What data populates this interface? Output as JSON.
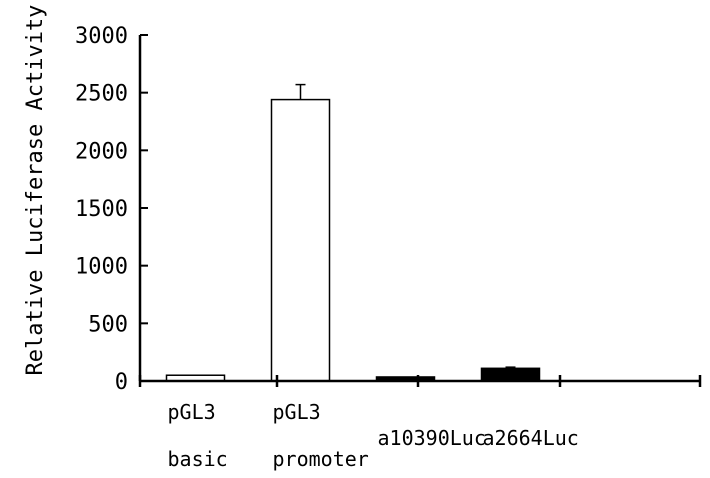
{
  "chart_data": {
    "type": "bar",
    "title": "",
    "xlabel": "",
    "ylabel": "Relative Luciferase Activity",
    "ylim": [
      0,
      3000
    ],
    "yticks": [
      0,
      500,
      1000,
      1500,
      2000,
      2500,
      3000
    ],
    "ytick_labels": [
      "0",
      "500",
      "1000",
      "1500",
      "2000",
      "2500",
      "3000"
    ],
    "categories": [
      [
        "pGL3",
        "basic"
      ],
      [
        "pGL3",
        "promoter"
      ],
      [
        "a10390Luc"
      ],
      [
        "a2664Luc"
      ]
    ],
    "values": [
      50,
      2440,
      35,
      110
    ],
    "error_upper": [
      null,
      130,
      null,
      10
    ],
    "bar_fills": [
      "#ffffff",
      "#ffffff",
      "#000000",
      "#000000"
    ],
    "grid": false,
    "legend": "none"
  }
}
